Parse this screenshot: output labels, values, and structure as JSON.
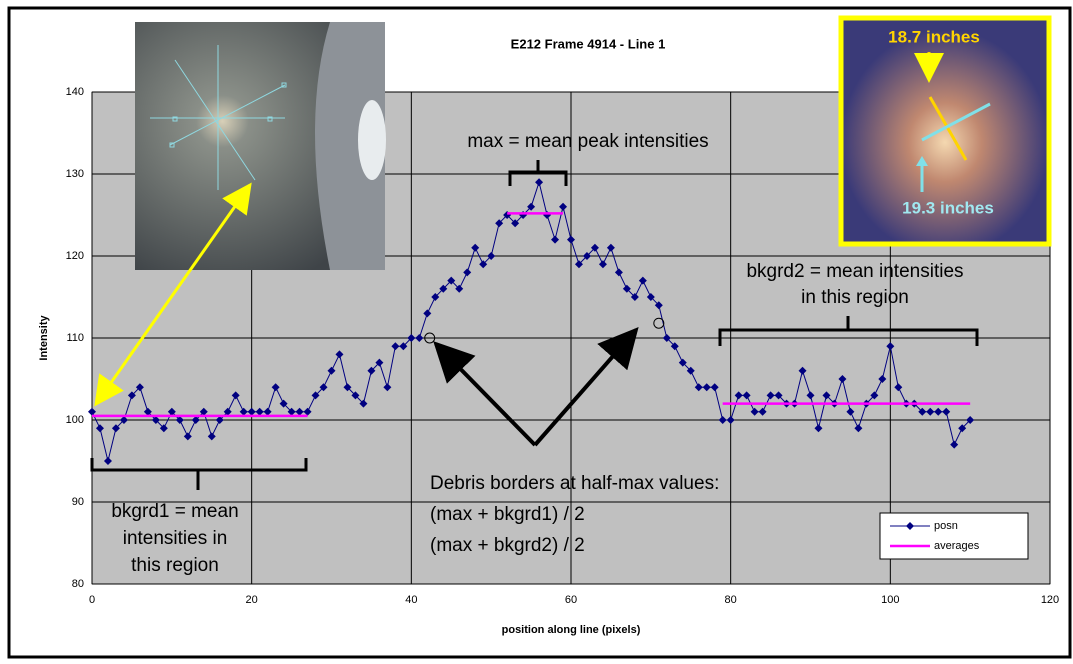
{
  "chart_data": {
    "type": "line",
    "title": "E212 Frame 4914 - Line 1",
    "x_label": "position along line (pixels)",
    "y_label": "Intensity",
    "xlim": [
      0,
      120
    ],
    "xticks": [
      0,
      20,
      40,
      60,
      80,
      100,
      120
    ],
    "ylim": [
      80,
      140
    ],
    "yticks": [
      80,
      90,
      100,
      110,
      120,
      130,
      140
    ],
    "grid": true,
    "legend": "lower right",
    "series": [
      {
        "name": "posn",
        "color": "#000080",
        "x": [
          0,
          1,
          2,
          3,
          4,
          5,
          6,
          7,
          8,
          9,
          10,
          11,
          12,
          13,
          14,
          15,
          16,
          17,
          18,
          19,
          20,
          21,
          22,
          23,
          24,
          25,
          26,
          27,
          28,
          29,
          30,
          31,
          32,
          33,
          34,
          35,
          36,
          37,
          38,
          39,
          40,
          41,
          42,
          43,
          44,
          45,
          46,
          47,
          48,
          49,
          50,
          51,
          52,
          53,
          54,
          55,
          56,
          57,
          58,
          59,
          60,
          61,
          62,
          63,
          64,
          65,
          66,
          67,
          68,
          69,
          70,
          71,
          72,
          73,
          74,
          75,
          76,
          77,
          78,
          79,
          80,
          81,
          82,
          83,
          84,
          85,
          86,
          87,
          88,
          89,
          90,
          91,
          92,
          93,
          94,
          95,
          96,
          97,
          98,
          99,
          100,
          101,
          102,
          103,
          104,
          105,
          106,
          107,
          108,
          109,
          110
        ],
        "values": [
          101,
          99,
          95,
          99,
          100,
          103,
          104,
          101,
          100,
          99,
          101,
          100,
          98,
          100,
          101,
          98,
          100,
          101,
          103,
          101,
          101,
          101,
          101,
          104,
          102,
          101,
          101,
          101,
          103,
          104,
          106,
          108,
          104,
          103,
          102,
          106,
          107,
          104,
          109,
          109,
          110,
          110,
          113,
          115,
          116,
          117,
          116,
          118,
          121,
          119,
          120,
          124,
          125,
          124,
          125,
          126,
          129,
          125,
          122,
          126,
          122,
          119,
          120,
          121,
          119,
          121,
          118,
          116,
          115,
          117,
          115,
          114,
          110,
          109,
          107,
          106,
          104,
          104,
          104,
          100,
          100,
          103,
          103,
          101,
          101,
          103,
          103,
          102,
          102,
          106,
          103,
          99,
          103,
          102,
          105,
          101,
          99,
          102,
          103,
          105,
          109,
          104,
          102,
          102,
          101,
          101,
          101,
          101,
          97,
          99,
          100
        ]
      },
      {
        "name": "averages",
        "color": "#ff00ff",
        "x": [
          0,
          27,
          null,
          52,
          59,
          null,
          79,
          110
        ],
        "values": [
          100.5,
          100.5,
          null,
          125.2,
          125.2,
          null,
          102,
          102
        ]
      }
    ],
    "half_max_points": {
      "x": [
        42.3,
        71
      ],
      "values": [
        110,
        111.8
      ]
    },
    "annotations": [
      [
        "max = mean peak intensities"
      ],
      [
        "bkgrd2 = mean intensities",
        "in this region"
      ],
      [
        "bkgrd1 = mean",
        "intensities in",
        "this region"
      ],
      [
        "Debris borders at half-max values:",
        "(max + bkgrd1) / 2",
        "(max + bkgrd2) / 2"
      ]
    ],
    "inset_labels": [
      "18.7 inches",
      "19.3 inches"
    ]
  }
}
